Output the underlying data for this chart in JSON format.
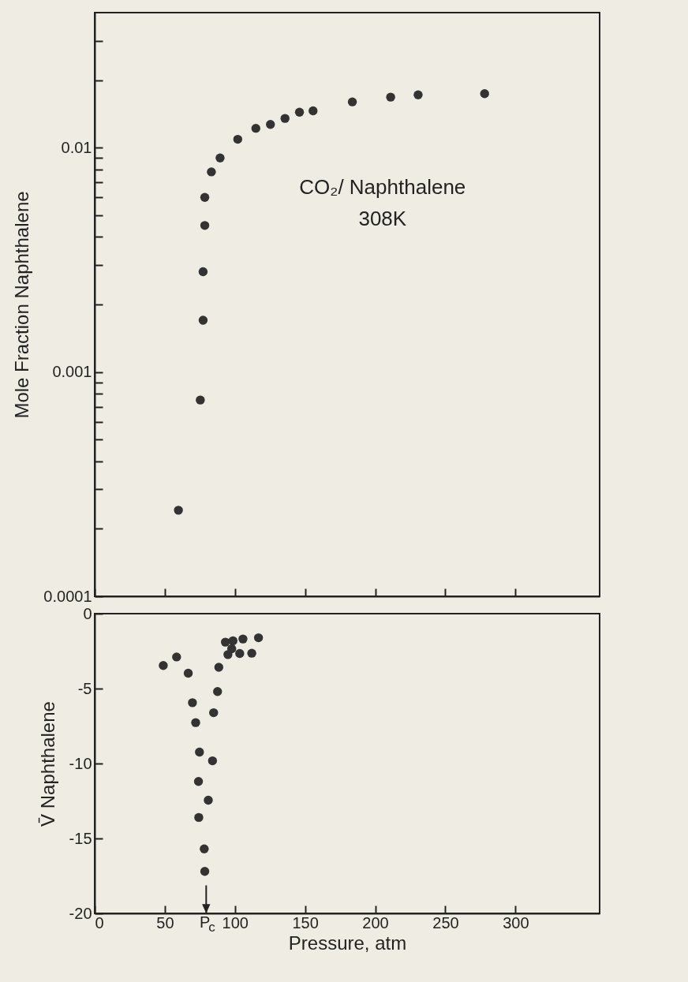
{
  "chart_data": [
    {
      "type": "scatter",
      "ylabel": "Mole Fraction Naphthalene",
      "annotations": [
        "CO₂/ Naphthalene",
        "308K"
      ],
      "color": "#333333",
      "marker": "circle",
      "log": "y",
      "tick_labels": "y",
      "x": [
        59.7,
        75.3,
        77.3,
        77.3,
        78.5,
        78.5,
        83.2,
        89.4,
        102,
        114.9,
        125.3,
        135.7,
        146,
        155.7,
        183.7,
        211,
        230.6,
        278
      ],
      "values": [
        0.000242,
        0.00075,
        0.0017,
        0.0028,
        0.0045,
        0.006,
        0.0078,
        0.009,
        0.0109,
        0.0122,
        0.0127,
        0.0135,
        0.0144,
        0.0146,
        0.016,
        0.0168,
        0.0172,
        0.0174
      ],
      "xlim": [
        0,
        360
      ],
      "xticks": [
        0,
        50,
        100,
        150,
        200,
        250,
        300
      ],
      "ylim": [
        0.0001,
        0.04
      ],
      "yticks": [
        0.0001,
        {
          "value": 0.0002,
          "label": null
        },
        {
          "value": 0.0003,
          "label": null
        },
        {
          "value": 0.0004,
          "label": null
        },
        {
          "value": 0.0005,
          "label": null
        },
        {
          "value": 0.0006,
          "label": null
        },
        {
          "value": 0.0007,
          "label": null
        },
        {
          "value": 0.0008,
          "label": null
        },
        {
          "value": 0.0009,
          "label": null
        },
        0.001,
        {
          "value": 0.002,
          "label": null
        },
        {
          "value": 0.003,
          "label": null
        },
        {
          "value": 0.004,
          "label": null
        },
        {
          "value": 0.005,
          "label": null
        },
        {
          "value": 0.006,
          "label": null
        },
        {
          "value": 0.007,
          "label": null
        },
        {
          "value": 0.008,
          "label": null
        },
        {
          "value": 0.009,
          "label": null
        },
        0.01,
        {
          "value": 0.02,
          "label": null
        },
        {
          "value": 0.03,
          "label": null
        }
      ]
    },
    {
      "type": "scatter",
      "xlabel": "Pressure, atm",
      "ylabel": "V̄ Naphthalene",
      "color": "#333333",
      "marker": "circle",
      "x": [
        48.9,
        58.4,
        66.7,
        69.7,
        72,
        74.7,
        74,
        74.2,
        78.1,
        78.5,
        81,
        84,
        84.8,
        87.6,
        88.5,
        93.2,
        98.6,
        105.7,
        95,
        103.4,
        112,
        116.8,
        97.7
      ],
      "values": [
        -3.46,
        -2.89,
        -3.97,
        -5.94,
        -7.27,
        -9.24,
        -11.2,
        -13.6,
        -15.7,
        -17.2,
        -12.45,
        -9.82,
        -6.61,
        -5.2,
        -3.58,
        -1.9,
        -1.81,
        -1.69,
        -2.73,
        -2.66,
        -2.64,
        -1.61,
        -2.34
      ],
      "xlim": [
        0,
        360
      ],
      "xticks": [
        0,
        50,
        {
          "value": 79.5,
          "label": "P$_{c}$"
        },
        100,
        150,
        200,
        250,
        300
      ],
      "ylim": [
        -20,
        0
      ],
      "yticks": [
        0,
        -5,
        -10,
        -15,
        -20
      ]
    }
  ]
}
